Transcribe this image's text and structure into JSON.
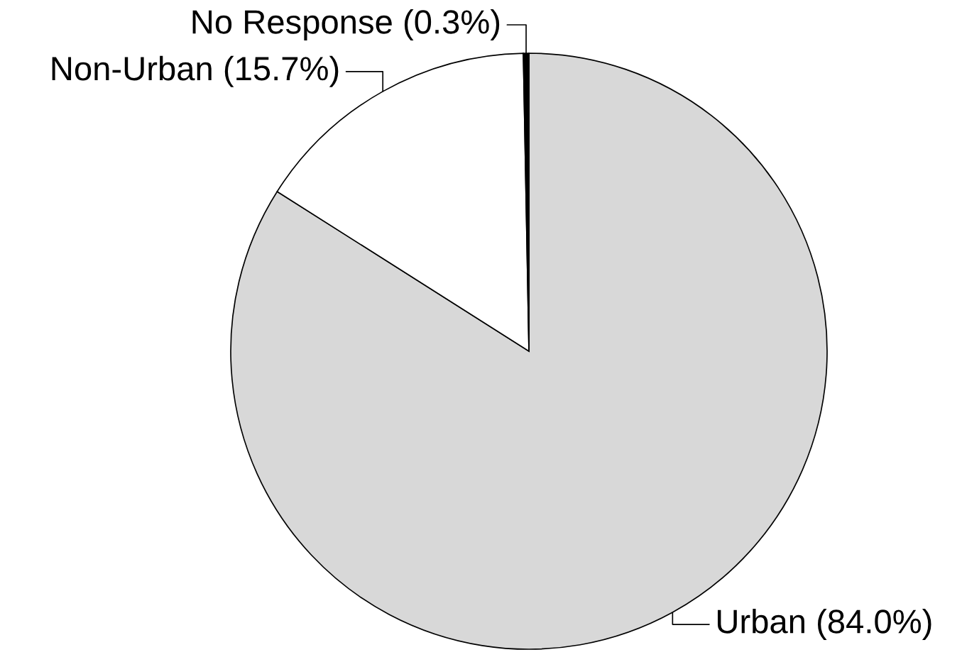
{
  "chart_data": {
    "type": "pie",
    "categories": [
      "Urban (84.0%)",
      "Non-Urban (15.7%)",
      "No Response (0.3%)"
    ],
    "values": [
      84.0,
      15.7,
      0.3
    ],
    "colors": [
      "#d8d8d8",
      "#ffffff",
      "#000000"
    ]
  }
}
